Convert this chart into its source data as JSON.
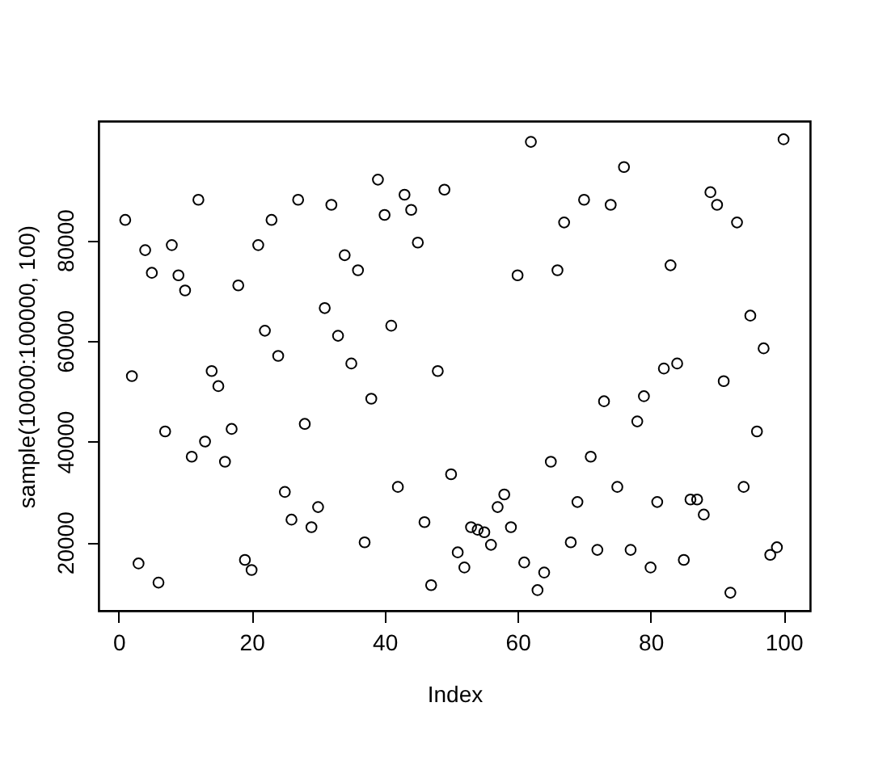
{
  "chart_data": {
    "type": "scatter",
    "xlabel": "Index",
    "ylabel": "sample(10000:100000, 100)",
    "x": [
      1,
      2,
      3,
      4,
      5,
      6,
      7,
      8,
      9,
      10,
      11,
      12,
      13,
      14,
      15,
      16,
      17,
      18,
      19,
      20,
      21,
      22,
      23,
      24,
      25,
      26,
      27,
      28,
      29,
      30,
      31,
      32,
      33,
      34,
      35,
      36,
      37,
      38,
      39,
      40,
      41,
      42,
      43,
      44,
      45,
      46,
      47,
      48,
      49,
      50,
      51,
      52,
      53,
      54,
      55,
      56,
      57,
      58,
      59,
      60,
      61,
      62,
      63,
      64,
      65,
      66,
      67,
      68,
      69,
      70,
      71,
      72,
      73,
      74,
      75,
      76,
      77,
      78,
      79,
      80,
      81,
      82,
      83,
      84,
      85,
      86,
      87,
      88,
      89,
      90,
      91,
      92,
      93,
      94,
      95,
      96,
      97,
      98,
      99,
      100
    ],
    "series": [
      {
        "color": "#000000",
        "values": [
          84000,
          53000,
          15800,
          78000,
          73500,
          12000,
          42000,
          79000,
          73000,
          70000,
          37000,
          88000,
          40000,
          54000,
          51000,
          36000,
          42500,
          71000,
          16500,
          14500,
          79000,
          62000,
          84000,
          57000,
          30000,
          24500,
          88000,
          43500,
          23000,
          27000,
          66500,
          87000,
          61000,
          77000,
          55500,
          74000,
          20000,
          48500,
          92000,
          85000,
          63000,
          31000,
          89000,
          86000,
          79500,
          24000,
          11500,
          54000,
          90000,
          33500,
          18000,
          15000,
          23000,
          22500,
          22000,
          19500,
          27000,
          29500,
          23000,
          73000,
          16000,
          99500,
          10500,
          14000,
          36000,
          74000,
          83500,
          20000,
          28000,
          88000,
          37000,
          18500,
          48000,
          87000,
          31000,
          94500,
          18500,
          44000,
          49000,
          15000,
          28000,
          54500,
          75000,
          55500,
          16500,
          28500,
          28500,
          25500,
          89500,
          87000,
          52000,
          10000,
          83500,
          31000,
          65000,
          42000,
          58500,
          17500,
          19000,
          100000
        ]
      }
    ],
    "xlim": [
      -3,
      104
    ],
    "ylim": [
      6400,
      103600
    ],
    "xticks": [
      0,
      20,
      40,
      60,
      80,
      100
    ],
    "yticks": [
      20000,
      40000,
      60000,
      80000
    ],
    "marker": "circle",
    "grid": false,
    "legend": false
  }
}
